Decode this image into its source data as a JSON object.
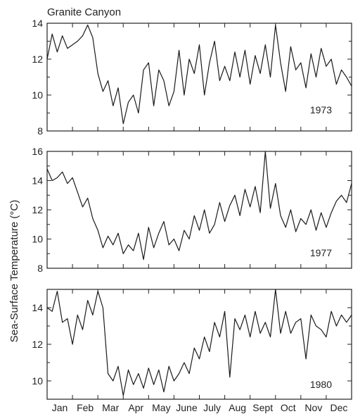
{
  "figure": {
    "title": "Granite Canyon",
    "ylabel": "Sea-Surface Temperature (°C)",
    "months": [
      "Jan",
      "Feb",
      "Mar",
      "Apr",
      "May",
      "June",
      "July",
      "Aug",
      "Sept",
      "Oct",
      "Nov",
      "Dec"
    ]
  },
  "chart_data": [
    {
      "type": "line",
      "series": [
        {
          "name": "1973",
          "x_months": [
            0.0,
            0.2,
            0.4,
            0.6,
            0.8,
            1.0,
            1.2,
            1.4,
            1.6,
            1.8,
            2.0,
            2.2,
            2.4,
            2.6,
            2.8,
            3.0,
            3.2,
            3.4,
            3.6,
            3.8,
            4.0,
            4.2,
            4.4,
            4.6,
            4.8,
            5.0,
            5.2,
            5.4,
            5.6,
            5.8,
            6.0,
            6.2,
            6.4,
            6.6,
            6.8,
            7.0,
            7.2,
            7.4,
            7.6,
            7.8,
            8.0,
            8.2,
            8.4,
            8.6,
            8.8,
            9.0,
            9.2,
            9.4,
            9.6,
            9.8,
            10.0,
            10.2,
            10.4,
            10.6,
            10.8,
            11.0,
            11.2,
            11.4,
            11.6,
            11.8,
            12.0
          ],
          "values": [
            12.0,
            13.4,
            12.4,
            13.3,
            12.6,
            12.8,
            13.0,
            13.3,
            13.9,
            13.2,
            11.2,
            10.2,
            10.8,
            9.4,
            10.4,
            8.4,
            9.6,
            10.0,
            9.0,
            11.4,
            11.8,
            9.4,
            11.4,
            10.8,
            9.4,
            10.2,
            12.5,
            10.0,
            12.0,
            11.2,
            12.8,
            10.0,
            11.8,
            13.0,
            10.8,
            11.6,
            10.8,
            12.4,
            11.0,
            12.5,
            10.6,
            12.2,
            11.2,
            12.8,
            11.0,
            13.9,
            11.8,
            10.2,
            12.7,
            11.4,
            11.8,
            10.4,
            12.3,
            11.0,
            12.6,
            11.6,
            12.0,
            10.6,
            11.4,
            11.0,
            10.5
          ]
        }
      ],
      "ylim": [
        8,
        14
      ],
      "yticks": [
        8,
        10,
        12,
        14
      ],
      "xlim": [
        0,
        12
      ]
    },
    {
      "type": "line",
      "series": [
        {
          "name": "1977",
          "x_months": [
            0.0,
            0.2,
            0.4,
            0.6,
            0.8,
            1.0,
            1.2,
            1.4,
            1.6,
            1.8,
            2.0,
            2.2,
            2.4,
            2.6,
            2.8,
            3.0,
            3.2,
            3.4,
            3.6,
            3.8,
            4.0,
            4.2,
            4.4,
            4.6,
            4.8,
            5.0,
            5.2,
            5.4,
            5.6,
            5.8,
            6.0,
            6.2,
            6.4,
            6.6,
            6.8,
            7.0,
            7.2,
            7.4,
            7.6,
            7.8,
            8.0,
            8.2,
            8.4,
            8.6,
            8.8,
            9.0,
            9.2,
            9.4,
            9.6,
            9.8,
            10.0,
            10.2,
            10.4,
            10.6,
            10.8,
            11.0,
            11.2,
            11.4,
            11.6,
            11.8,
            12.0
          ],
          "values": [
            14.8,
            14.0,
            14.2,
            14.6,
            13.8,
            14.2,
            13.2,
            12.2,
            12.8,
            11.4,
            10.6,
            9.4,
            10.2,
            9.6,
            10.4,
            9.0,
            9.6,
            9.2,
            10.4,
            8.6,
            10.8,
            9.4,
            10.4,
            11.2,
            9.6,
            10.0,
            9.2,
            10.6,
            10.0,
            11.6,
            10.6,
            12.0,
            10.4,
            11.0,
            12.5,
            11.2,
            12.3,
            13.0,
            11.6,
            13.4,
            12.2,
            13.6,
            11.8,
            16.0,
            12.1,
            13.8,
            11.6,
            10.8,
            12.0,
            10.5,
            11.4,
            11.0,
            12.0,
            10.6,
            11.8,
            10.8,
            11.8,
            12.6,
            13.0,
            12.5,
            13.8
          ]
        }
      ],
      "ylim": [
        8,
        16
      ],
      "yticks": [
        8,
        10,
        12,
        14,
        16
      ],
      "xlim": [
        0,
        12
      ]
    },
    {
      "type": "line",
      "series": [
        {
          "name": "1980",
          "x_months": [
            0.0,
            0.2,
            0.4,
            0.6,
            0.8,
            1.0,
            1.2,
            1.4,
            1.6,
            1.8,
            2.0,
            2.2,
            2.4,
            2.6,
            2.8,
            3.0,
            3.2,
            3.4,
            3.6,
            3.8,
            4.0,
            4.2,
            4.4,
            4.6,
            4.8,
            5.0,
            5.2,
            5.4,
            5.6,
            5.8,
            6.0,
            6.2,
            6.4,
            6.6,
            6.8,
            7.0,
            7.2,
            7.4,
            7.6,
            7.8,
            8.0,
            8.2,
            8.4,
            8.6,
            8.8,
            9.0,
            9.2,
            9.4,
            9.6,
            9.8,
            10.0,
            10.2,
            10.4,
            10.6,
            10.8,
            11.0,
            11.2,
            11.4,
            11.6,
            11.8,
            12.0
          ],
          "values": [
            14.0,
            13.8,
            14.9,
            13.2,
            13.4,
            12.0,
            13.6,
            12.8,
            14.4,
            13.6,
            14.9,
            14.0,
            10.4,
            10.0,
            10.8,
            9.2,
            10.6,
            9.8,
            10.4,
            9.6,
            10.7,
            9.8,
            10.6,
            9.4,
            10.8,
            10.0,
            10.4,
            11.0,
            10.4,
            11.8,
            11.2,
            12.4,
            11.6,
            13.2,
            12.4,
            13.8,
            10.2,
            13.4,
            12.8,
            13.6,
            12.4,
            13.8,
            12.6,
            13.2,
            12.4,
            15.0,
            12.6,
            13.8,
            12.6,
            13.2,
            13.4,
            11.2,
            13.6,
            13.0,
            12.8,
            12.4,
            13.8,
            13.0,
            13.6,
            13.2,
            13.6
          ]
        }
      ],
      "ylim": [
        9,
        15
      ],
      "yticks": [
        10,
        12,
        14
      ],
      "xlim": [
        0,
        12
      ]
    }
  ]
}
